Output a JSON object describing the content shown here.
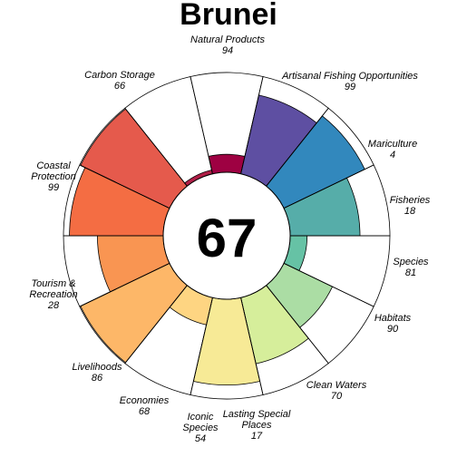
{
  "chart_data": {
    "type": "polar-bar",
    "title": "Brunei",
    "center_value": "67",
    "max_value": 100,
    "goals": [
      {
        "label": "Natural Products",
        "value": 94,
        "color": "#F46D43"
      },
      {
        "label": "Artisanal Fishing Opportunities",
        "value": 99,
        "color": "#E55A4C"
      },
      {
        "label": "Mariculture",
        "value": 4,
        "color": "#B01F47"
      },
      {
        "label": "Fisheries",
        "value": 18,
        "color": "#9E0142"
      },
      {
        "label": "Species",
        "value": 81,
        "color": "#5E4FA2"
      },
      {
        "label": "Habitats",
        "value": 90,
        "color": "#3288BD"
      },
      {
        "label": "Clean Waters",
        "value": 70,
        "color": "#56ADA9"
      },
      {
        "label": "Lasting Special Places",
        "value": 17,
        "color": "#66C2A5"
      },
      {
        "label": "Iconic Species",
        "value": 54,
        "color": "#ABDDA4"
      },
      {
        "label": "Economies",
        "value": 68,
        "color": "#D6EE9B"
      },
      {
        "label": "Livelihoods",
        "value": 86,
        "color": "#F7EA96"
      },
      {
        "label": "Tourism & Recreation",
        "value": 28,
        "color": "#FED582"
      },
      {
        "label": "Coastal Protection",
        "value": 99,
        "color": "#FDB768"
      },
      {
        "label": "Carbon Storage",
        "value": 66,
        "color": "#F99552"
      }
    ]
  }
}
